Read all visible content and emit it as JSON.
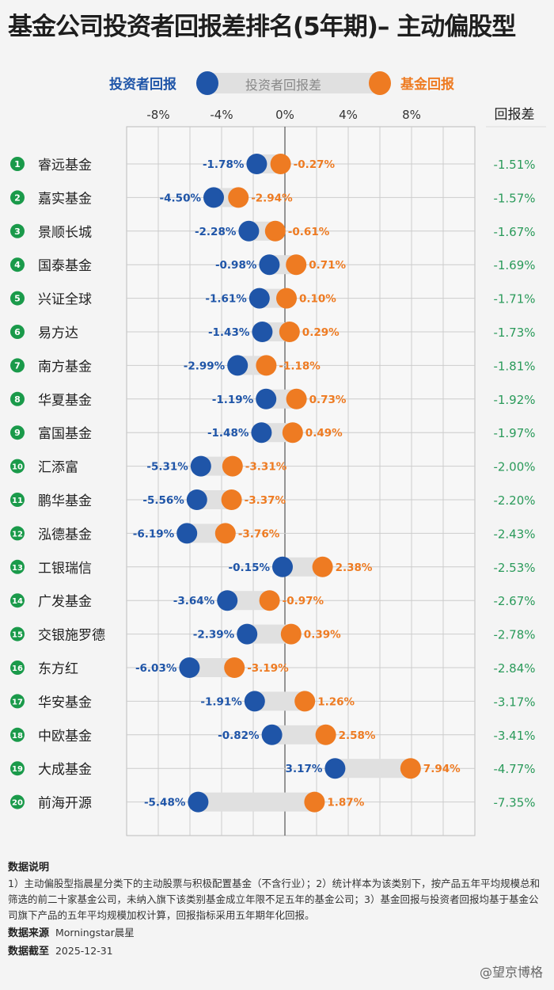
{
  "title": "基金公司投资者回报差排名(5年期)– 主动偏股型",
  "legend": {
    "investor": "投资者回报",
    "gap": "投资者回报差",
    "fund": "基金回报"
  },
  "colors": {
    "investor": "#1f55a8",
    "fund": "#ee7b22",
    "gap": "#e0e0e0",
    "rank": "#1a9a4a",
    "diff": "#2a9a5a"
  },
  "chart_data": {
    "type": "dumbbell",
    "xlim": [
      -10,
      12
    ],
    "x_ticks": [
      "-8%",
      "-4%",
      "0%",
      "4%",
      "8%"
    ],
    "x_tick_values": [
      -8,
      -4,
      0,
      4,
      8
    ],
    "right_column_header": "回报差",
    "grid": true,
    "series": [
      {
        "name": "投资者回报"
      },
      {
        "name": "基金回报"
      }
    ],
    "rows": [
      {
        "rank": "1",
        "name": "睿远基金",
        "investor": -1.78,
        "fund": -0.27,
        "diff": "-1.51%"
      },
      {
        "rank": "2",
        "name": "嘉实基金",
        "investor": -4.5,
        "fund": -2.94,
        "diff": "-1.57%"
      },
      {
        "rank": "3",
        "name": "景顺长城",
        "investor": -2.28,
        "fund": -0.61,
        "diff": "-1.67%"
      },
      {
        "rank": "4",
        "name": "国泰基金",
        "investor": -0.98,
        "fund": 0.71,
        "diff": "-1.69%"
      },
      {
        "rank": "5",
        "name": "兴证全球",
        "investor": -1.61,
        "fund": 0.1,
        "diff": "-1.71%"
      },
      {
        "rank": "6",
        "name": "易方达",
        "investor": -1.43,
        "fund": 0.29,
        "diff": "-1.73%"
      },
      {
        "rank": "7",
        "name": "南方基金",
        "investor": -2.99,
        "fund": -1.18,
        "diff": "-1.81%"
      },
      {
        "rank": "8",
        "name": "华夏基金",
        "investor": -1.19,
        "fund": 0.73,
        "diff": "-1.92%"
      },
      {
        "rank": "9",
        "name": "富国基金",
        "investor": -1.48,
        "fund": 0.49,
        "diff": "-1.97%"
      },
      {
        "rank": "10",
        "name": "汇添富",
        "investor": -5.31,
        "fund": -3.31,
        "diff": "-2.00%"
      },
      {
        "rank": "11",
        "name": "鹏华基金",
        "investor": -5.56,
        "fund": -3.37,
        "diff": "-2.20%"
      },
      {
        "rank": "12",
        "name": "泓德基金",
        "investor": -6.19,
        "fund": -3.76,
        "diff": "-2.43%"
      },
      {
        "rank": "13",
        "name": "工银瑞信",
        "investor": -0.15,
        "fund": 2.38,
        "diff": "-2.53%"
      },
      {
        "rank": "14",
        "name": "广发基金",
        "investor": -3.64,
        "fund": -0.97,
        "diff": "-2.67%"
      },
      {
        "rank": "15",
        "name": "交银施罗德",
        "investor": -2.39,
        "fund": 0.39,
        "diff": "-2.78%"
      },
      {
        "rank": "16",
        "name": "东方红",
        "investor": -6.03,
        "fund": -3.19,
        "diff": "-2.84%"
      },
      {
        "rank": "17",
        "name": "华安基金",
        "investor": -1.91,
        "fund": 1.26,
        "diff": "-3.17%"
      },
      {
        "rank": "18",
        "name": "中欧基金",
        "investor": -0.82,
        "fund": 2.58,
        "diff": "-3.41%"
      },
      {
        "rank": "19",
        "name": "大成基金",
        "investor": 3.17,
        "fund": 7.94,
        "diff": "-4.77%"
      },
      {
        "rank": "20",
        "name": "前海开源",
        "investor": -5.48,
        "fund": 1.87,
        "diff": "-7.35%"
      }
    ]
  },
  "footer": {
    "notes_title": "数据说明",
    "notes": "1）主动偏股型指晨星分类下的主动股票与积极配置基金（不含行业）；2）统计样本为该类别下，按产品五年平均规模总和筛选的前二十家基金公司，未纳入旗下该类别基金成立年限不足五年的基金公司；3）基金回报与投资者回报均基于基金公司旗下产品的五年平均规模加权计算，回报指标采用五年期年化回报。",
    "source_label": "数据来源",
    "source": "Morningstar晨星",
    "date_label": "数据截至",
    "date": "2025-12-31"
  },
  "watermark": "@望京博格"
}
